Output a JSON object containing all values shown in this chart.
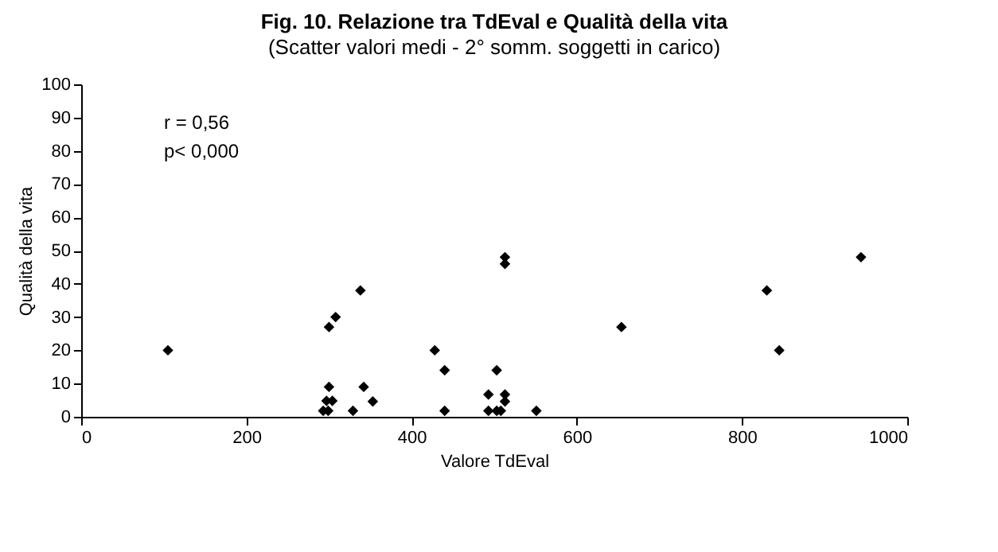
{
  "chart_data": {
    "type": "scatter",
    "title": "Fig. 10. Relazione tra TdEval e Qualità della vita",
    "subtitle": "(Scatter valori medi - 2° somm. soggetti in carico)",
    "xlabel": "Valore TdEval",
    "ylabel": "Qualità della vita",
    "x": [
      105,
      300,
      308,
      338,
      300,
      342,
      353,
      297,
      304,
      293,
      299,
      329,
      428,
      440,
      440,
      513,
      513,
      503,
      493,
      513,
      513,
      493,
      503,
      508,
      551,
      654,
      830,
      845,
      944
    ],
    "values": [
      20,
      27,
      30,
      38,
      9,
      9,
      4.6,
      4.8,
      4.8,
      1.8,
      1.8,
      1.8,
      20,
      14,
      1.8,
      48,
      46,
      14,
      6.7,
      6.7,
      4.6,
      1.8,
      1.8,
      1.8,
      1.8,
      27,
      38,
      20,
      48
    ],
    "color": "#000000",
    "marker": "diamond",
    "xlim": [
      0,
      1000
    ],
    "xticks": [
      0,
      200,
      400,
      600,
      800,
      1000
    ],
    "ylim": [
      0,
      100
    ],
    "yticks": [
      0,
      10,
      20,
      30,
      40,
      50,
      60,
      70,
      80,
      90,
      100
    ],
    "annotations": [
      "r = 0,56",
      "p< 0,000"
    ]
  }
}
